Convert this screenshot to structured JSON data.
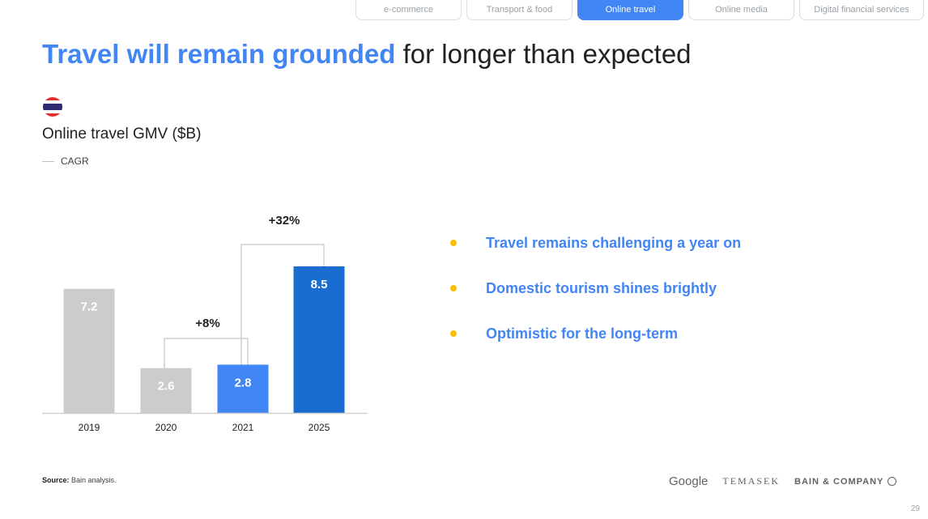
{
  "tabs": [
    {
      "label": "e-commerce",
      "active": false
    },
    {
      "label": "Transport & food",
      "active": false
    },
    {
      "label": "Online travel",
      "active": true
    },
    {
      "label": "Online media",
      "active": false
    },
    {
      "label": "Digital financial services",
      "active": false
    }
  ],
  "title": {
    "highlight": "Travel will remain grounded",
    "rest": " for longer than expected"
  },
  "flag_icon": "thailand-flag-icon",
  "bullets": [
    "Travel remains challenging a year on",
    "Domestic tourism shines brightly",
    "Optimistic for the long-term"
  ],
  "source": {
    "label": "Source:",
    "text": " Bain analysis."
  },
  "logos": {
    "google": "Google",
    "temasek": "TEMASEK",
    "bain": "BAIN & COMPANY"
  },
  "page_number": "29",
  "colors": {
    "accent": "#4285f4",
    "bar_grey": "#cccccc",
    "bar_dark_blue": "#1a6dd0",
    "bullet_dot": "#fbbc04"
  },
  "chart_data": {
    "type": "bar",
    "title": "Online travel GMV ($B)",
    "legend": [
      "CAGR"
    ],
    "categories": [
      "2019",
      "2020",
      "2021",
      "2025"
    ],
    "values": [
      7.2,
      2.6,
      2.8,
      8.5
    ],
    "value_labels": [
      "7.2",
      "2.6",
      "2.8",
      "8.5"
    ],
    "bar_colors": [
      "#cccccc",
      "#cccccc",
      "#4285f4",
      "#1a6dd0"
    ],
    "annotations": [
      {
        "from": "2020",
        "to": "2021",
        "label": "+8%"
      },
      {
        "from": "2021",
        "to": "2025",
        "label": "+32%"
      }
    ],
    "ylim": [
      0,
      8.5
    ]
  }
}
